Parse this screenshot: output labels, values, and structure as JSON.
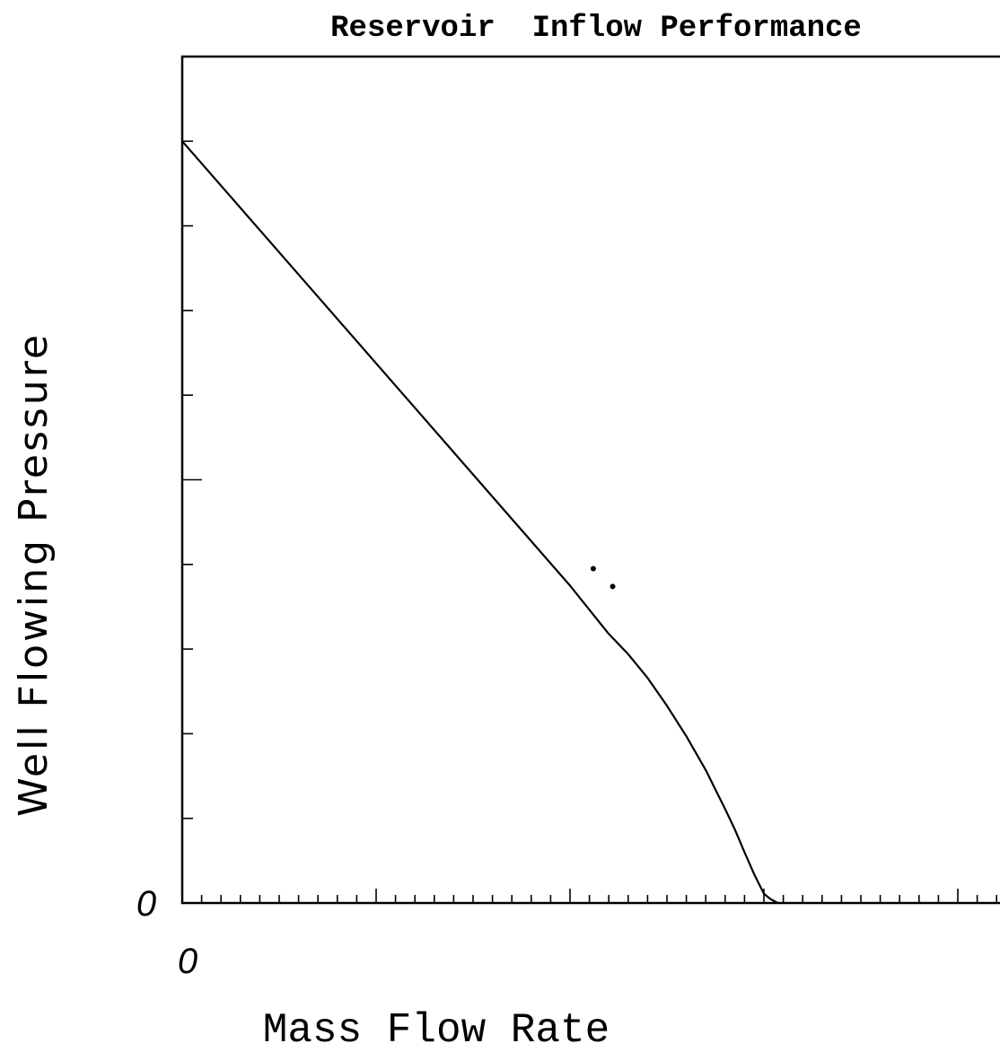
{
  "chart_data": {
    "type": "line",
    "title": "Reservoir  Inflow Performance",
    "xlabel": "Mass Flow Rate",
    "ylabel": "Well Flowing Pressure",
    "x_origin_label": "0",
    "y_origin_label": "0",
    "xlim": [
      0,
      1.0
    ],
    "ylim": [
      0,
      1.0
    ],
    "x_minor_ticks": 40,
    "x_major_tick_every": 10,
    "y_ticks": 9,
    "grid": false,
    "legend": "none",
    "line_color": "#000000",
    "series": [
      {
        "x": [
          0.0,
          0.1,
          0.2,
          0.3,
          0.4,
          0.5,
          0.549,
          0.575,
          0.6,
          0.625,
          0.65,
          0.675,
          0.7,
          0.713,
          0.725,
          0.738,
          0.75,
          0.758,
          0.766,
          0.768
        ],
        "y": [
          0.9,
          0.795,
          0.69,
          0.585,
          0.48,
          0.375,
          0.319,
          0.294,
          0.266,
          0.233,
          0.197,
          0.157,
          0.111,
          0.086,
          0.06,
          0.033,
          0.011,
          0.005,
          0.001,
          0.0
        ]
      }
    ],
    "markers": [
      {
        "x": 0.53,
        "y": 0.395
      },
      {
        "x": 0.555,
        "y": 0.374
      }
    ]
  }
}
